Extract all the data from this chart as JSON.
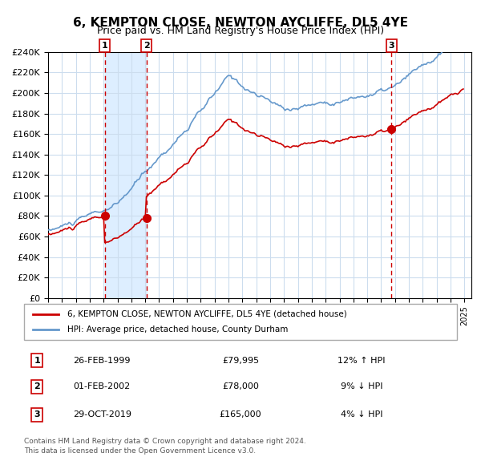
{
  "title": "6, KEMPTON CLOSE, NEWTON AYCLIFFE, DL5 4YE",
  "subtitle": "Price paid vs. HM Land Registry's House Price Index (HPI)",
  "legend_line1": "6, KEMPTON CLOSE, NEWTON AYCLIFFE, DL5 4YE (detached house)",
  "legend_line2": "HPI: Average price, detached house, County Durham",
  "sale_color": "#cc0000",
  "hpi_color": "#6699cc",
  "transactions": [
    {
      "date": "1999-02-26",
      "price": 79995,
      "label": "1"
    },
    {
      "date": "2002-02-01",
      "price": 78000,
      "label": "2"
    },
    {
      "date": "2019-10-29",
      "price": 165000,
      "label": "3"
    }
  ],
  "table_rows": [
    {
      "num": "1",
      "date": "26-FEB-1999",
      "price": "£79,995",
      "hpi": "12% ↑ HPI"
    },
    {
      "num": "2",
      "date": "01-FEB-2002",
      "price": "£78,000",
      "hpi": "9% ↓ HPI"
    },
    {
      "num": "3",
      "date": "29-OCT-2019",
      "price": "£165,000",
      "hpi": "4% ↓ HPI"
    }
  ],
  "footer_line1": "Contains HM Land Registry data © Crown copyright and database right 2024.",
  "footer_line2": "This data is licensed under the Open Government Licence v3.0.",
  "ylim": [
    0,
    240000
  ],
  "ytick_step": 20000,
  "background_color": "#ffffff",
  "grid_color": "#ccddee",
  "shaded_region_color": "#ddeeff"
}
